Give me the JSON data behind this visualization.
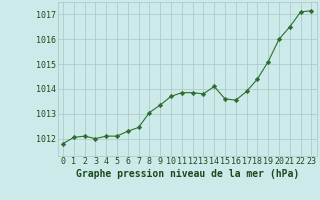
{
  "x": [
    0,
    1,
    2,
    3,
    4,
    5,
    6,
    7,
    8,
    9,
    10,
    11,
    12,
    13,
    14,
    15,
    16,
    17,
    18,
    19,
    20,
    21,
    22,
    23
  ],
  "y": [
    1011.8,
    1012.05,
    1012.1,
    1012.0,
    1012.1,
    1012.1,
    1012.3,
    1012.45,
    1013.05,
    1013.35,
    1013.7,
    1013.85,
    1013.85,
    1013.8,
    1014.1,
    1013.6,
    1013.55,
    1013.9,
    1014.4,
    1015.1,
    1016.0,
    1016.5,
    1017.1,
    1017.15
  ],
  "line_color": "#2d6e2d",
  "marker": "D",
  "marker_size": 2.2,
  "bg_color": "#cdeaea",
  "grid_color": "#a8c4c4",
  "xlabel": "Graphe pression niveau de la mer (hPa)",
  "xlabel_color": "#1a4a1a",
  "xlabel_fontsize": 7,
  "tick_label_color": "#1a4a1a",
  "tick_fontsize": 6,
  "ytick_labels": [
    "1012",
    "1013",
    "1014",
    "1015",
    "1016",
    "1017"
  ],
  "ytick_values": [
    1012,
    1013,
    1014,
    1015,
    1016,
    1017
  ],
  "ylim": [
    1011.3,
    1017.5
  ],
  "xlim": [
    -0.5,
    23.5
  ]
}
